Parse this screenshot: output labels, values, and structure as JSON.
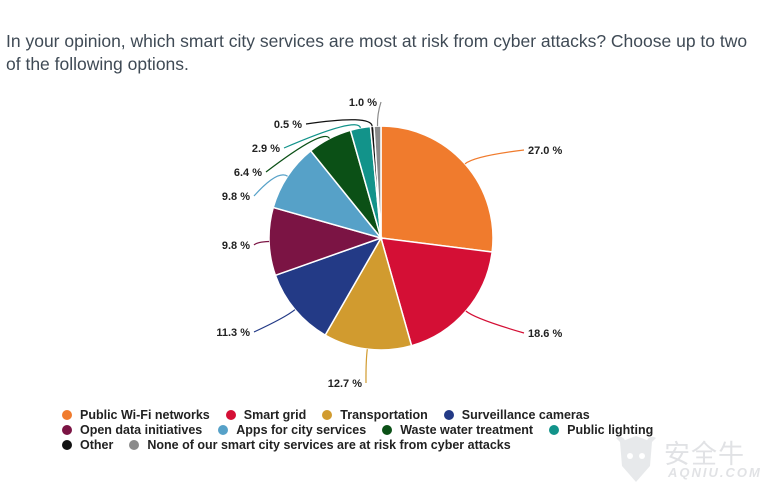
{
  "title": "In your opinion, which smart city services are most at risk from cyber attacks? Choose up to two of the following options.",
  "chart_data": {
    "type": "pie",
    "title": "In your opinion, which smart city services are most at risk from cyber attacks? Choose up to two of the following options.",
    "unit": "%",
    "legend_position": "bottom",
    "slices": [
      {
        "name": "Public Wi-Fi networks",
        "value": 27.0,
        "label": "27.0 %",
        "color": "#f07b2d"
      },
      {
        "name": "Smart grid",
        "value": 18.6,
        "label": "18.6 %",
        "color": "#d40f35"
      },
      {
        "name": "Transportation",
        "value": 12.7,
        "label": "12.7 %",
        "color": "#d19b2f"
      },
      {
        "name": "Surveillance cameras",
        "value": 11.3,
        "label": "11.3 %",
        "color": "#233a86"
      },
      {
        "name": "Open data initiatives",
        "value": 9.8,
        "label": "9.8 %",
        "color": "#7b1444"
      },
      {
        "name": "Apps for city services",
        "value": 9.8,
        "label": "9.8 %",
        "color": "#56a1c8"
      },
      {
        "name": "Waste water treatment",
        "value": 6.4,
        "label": "6.4 %",
        "color": "#0b5016"
      },
      {
        "name": "Public lighting",
        "value": 2.9,
        "label": "2.9 %",
        "color": "#12938a"
      },
      {
        "name": "Other",
        "value": 0.5,
        "label": "0.5 %",
        "color": "#111111"
      },
      {
        "name": "None of our smart city services are at risk from cyber attacks",
        "value": 1.0,
        "label": "1.0 %",
        "color": "#8a8a8a"
      }
    ]
  },
  "legend_rows": [
    [
      0,
      1,
      2,
      3
    ],
    [
      4,
      5,
      6,
      7
    ],
    [
      8,
      9
    ]
  ],
  "watermark": {
    "cn": "安全牛",
    "en": "AQNIU.COM",
    "icon": "bull-shield-logo"
  }
}
